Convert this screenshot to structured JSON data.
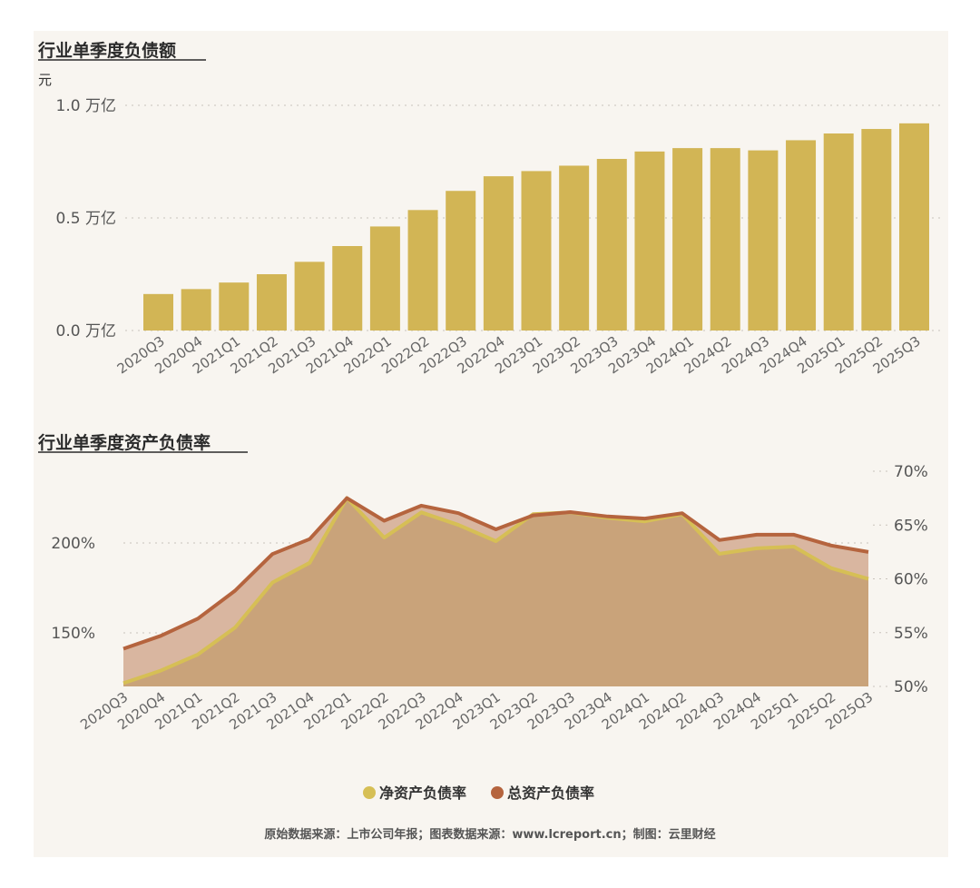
{
  "chart_data": [
    {
      "type": "bar",
      "title": "行业单季度负债额",
      "ylabel": "元",
      "yticks": [
        "0.0 万亿",
        "0.5 万亿",
        "1.0 万亿"
      ],
      "ylim": [
        0,
        1.0
      ],
      "categories": [
        "2020Q3",
        "2020Q4",
        "2021Q1",
        "2021Q2",
        "2021Q3",
        "2021Q4",
        "2022Q1",
        "2022Q2",
        "2022Q3",
        "2022Q4",
        "2023Q1",
        "2023Q2",
        "2023Q3",
        "2023Q4",
        "2024Q1",
        "2024Q2",
        "2024Q3",
        "2024Q4",
        "2025Q1",
        "2025Q2",
        "2025Q3"
      ],
      "values": [
        0.162,
        0.184,
        0.213,
        0.25,
        0.305,
        0.375,
        0.462,
        0.535,
        0.62,
        0.685,
        0.708,
        0.732,
        0.762,
        0.795,
        0.81,
        0.81,
        0.8,
        0.845,
        0.875,
        0.895,
        0.92
      ],
      "color": "#d2b555"
    },
    {
      "type": "area",
      "title": "行业单季度资产负债率",
      "categories": [
        "2020Q3",
        "2020Q4",
        "2021Q1",
        "2021Q2",
        "2021Q3",
        "2021Q4",
        "2022Q1",
        "2022Q2",
        "2022Q3",
        "2022Q4",
        "2023Q1",
        "2023Q2",
        "2023Q3",
        "2023Q4",
        "2024Q1",
        "2024Q2",
        "2024Q3",
        "2024Q4",
        "2025Q1",
        "2025Q2",
        "2025Q3"
      ],
      "left_axis": {
        "ticks": [
          "150%",
          "200%"
        ],
        "values": [
          150,
          200
        ]
      },
      "right_axis": {
        "ticks": [
          "50%",
          "55%",
          "60%",
          "65%",
          "70%"
        ],
        "values": [
          50,
          55,
          60,
          65,
          70
        ]
      },
      "series": [
        {
          "name": "净资产负债率",
          "axis": "left",
          "color": "#d6bf55",
          "values": [
            122,
            129,
            138,
            153,
            178,
            189,
            225,
            203,
            217,
            210,
            201,
            216,
            217,
            214,
            212,
            216,
            194,
            197,
            198,
            186,
            180
          ]
        },
        {
          "name": "总资产负债率",
          "axis": "right",
          "color": "#b5643e",
          "values": [
            53.5,
            54.7,
            56.3,
            58.9,
            62.3,
            63.7,
            67.5,
            65.4,
            66.8,
            66.1,
            64.6,
            65.9,
            66.2,
            65.8,
            65.6,
            66.1,
            63.6,
            64.1,
            64.1,
            63.1,
            62.5
          ]
        }
      ],
      "legend": "bottom"
    }
  ],
  "footer": "原始数据来源：上市公司年报；图表数据来源：www.lcreport.cn；制图：云里财经"
}
